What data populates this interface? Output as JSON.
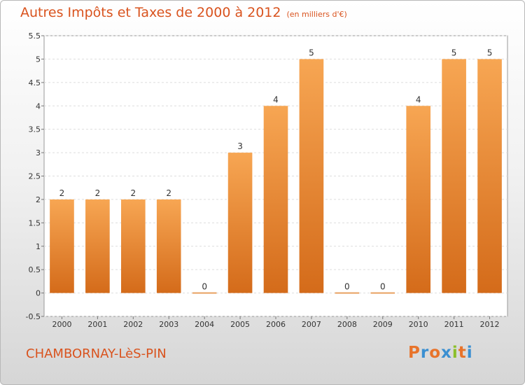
{
  "title": "Autres Impôts et Taxes de 2000 à 2012",
  "unit_note": "(en milliers d'€)",
  "commune": "CHAMBORNAY-LèS-PIN",
  "logo": {
    "letters": [
      "P",
      "r",
      "o",
      "x",
      "i",
      "t",
      "i"
    ],
    "colors": [
      "#e8732a",
      "#3a8fd1",
      "#e8732a",
      "#3a8fd1",
      "#8bbf2a",
      "#e8732a",
      "#3a8fd1"
    ]
  },
  "colors": {
    "bar_light": "#f7a653",
    "bar_dark": "#d46b1a",
    "title": "#d9531e",
    "zero_bar": "#e8a060"
  },
  "chart_data": {
    "type": "bar",
    "title": "Autres Impôts et Taxes de 2000 à 2012",
    "xlabel": "",
    "ylabel": "",
    "categories": [
      "2000",
      "2001",
      "2002",
      "2003",
      "2004",
      "2005",
      "2006",
      "2007",
      "2008",
      "2009",
      "2010",
      "2011",
      "2012"
    ],
    "values": [
      2,
      2,
      2,
      2,
      0,
      3,
      4,
      5,
      0,
      0,
      4,
      5,
      5
    ],
    "value_labels": [
      "2",
      "2",
      "2",
      "2",
      "0",
      "3",
      "4",
      "5",
      "0",
      "0",
      "4",
      "5",
      "5"
    ],
    "ylim": [
      -0.5,
      5.5
    ],
    "yticks": [
      -0.5,
      0,
      0.5,
      1,
      1.5,
      2,
      2.5,
      3,
      3.5,
      4,
      4.5,
      5,
      5.5
    ],
    "ytick_labels": [
      "-0.5",
      "0",
      "0.5",
      "1",
      "1.5",
      "2",
      "2.5",
      "3",
      "3.5",
      "4",
      "4.5",
      "5",
      "5.5"
    ],
    "grid": true
  }
}
